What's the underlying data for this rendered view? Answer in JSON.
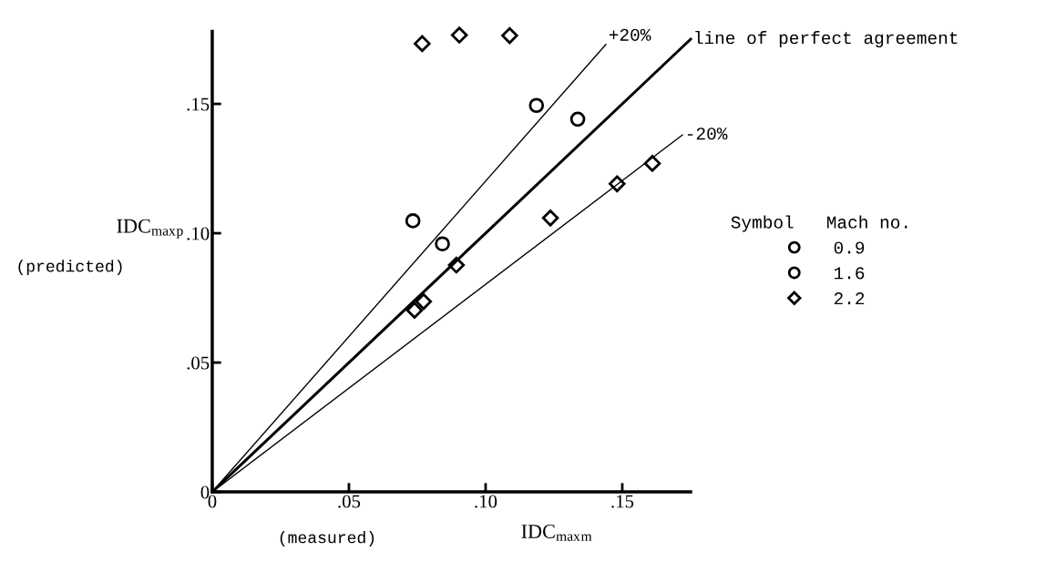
{
  "chart_data": {
    "type": "scatter",
    "xlabel": "IDC$_{max}$$_{m}$",
    "ylabel": "IDC$_{max}$$_{p}$",
    "legend_title": "Symbol   Mach no.",
    "annotations": [
      "(predicted)",
      "(measured)"
    ],
    "xlim": [
      0,
      0.175
    ],
    "ylim": [
      0,
      0.178
    ],
    "xticks": [
      0,
      {
        "value": 0.05,
        "label": ".05"
      },
      {
        "value": 0.1,
        "label": ".10"
      },
      {
        "value": 0.15,
        "label": ".15"
      }
    ],
    "yticks": [
      0,
      {
        "value": 0.05,
        "label": ".05"
      },
      {
        "value": 0.1,
        "label": ".10"
      },
      {
        "value": 0.15,
        "label": ".15"
      }
    ],
    "grid": false,
    "legend": "right",
    "series": [
      {
        "name": "0.9",
        "color": "#000000",
        "marker": "circle",
        "x": [
          0.0734,
          0.1186
        ],
        "values": [
          0.1048,
          0.1494
        ]
      },
      {
        "name": "1.6",
        "color": "#000000",
        "marker": "circle",
        "x": [
          0.0842,
          0.1337
        ],
        "values": [
          0.0959,
          0.1441
        ]
      },
      {
        "name": "2.2",
        "color": "#000000",
        "marker": "diamond",
        "x": [
          0.0768,
          0.0904,
          0.1088,
          0.074,
          0.0773,
          0.0893,
          0.1237,
          0.1481,
          0.161
        ],
        "values": [
          0.1733,
          0.1766,
          0.1764,
          0.0702,
          0.0736,
          0.0877,
          0.1059,
          0.1191,
          0.127
        ]
      },
      {
        "name": "+20%",
        "type": "line",
        "color": "#000000",
        "x": [
          0,
          0.144
        ],
        "values": [
          0,
          0.173
        ]
      },
      {
        "name": "line of perfect agreement",
        "type": "line",
        "color": "#000000",
        "line_style": "solid",
        "x": [
          0,
          0.175
        ],
        "values": [
          0,
          0.175
        ]
      },
      {
        "name": "-20%",
        "type": "line",
        "color": "#000000",
        "x": [
          0,
          0.172
        ],
        "values": [
          0,
          0.138
        ]
      }
    ]
  }
}
